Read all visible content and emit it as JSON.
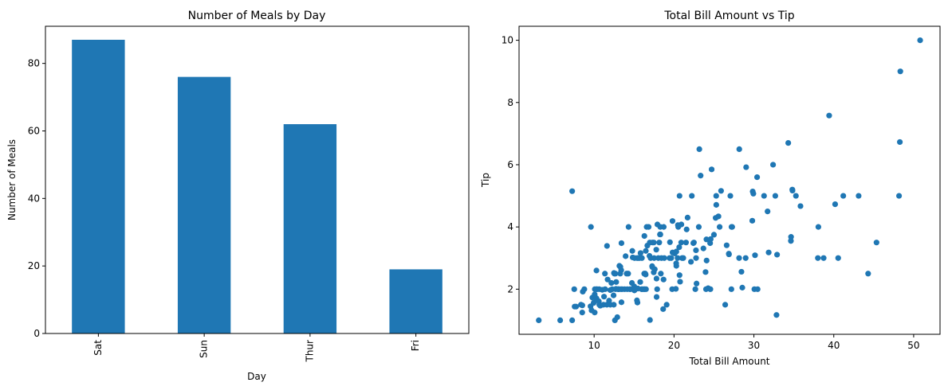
{
  "chart_data": [
    {
      "type": "bar",
      "title": "Number of Meals by Day",
      "xlabel": "Day",
      "ylabel": "Number of Meals",
      "categories": [
        "Sat",
        "Sun",
        "Thur",
        "Fri"
      ],
      "values": [
        87,
        76,
        62,
        19
      ],
      "ylim": [
        0,
        91
      ],
      "yticks": [
        0,
        20,
        40,
        60,
        80
      ],
      "color": "#1f77b4",
      "grid": false,
      "legend": "none"
    },
    {
      "type": "scatter",
      "title": "Total Bill Amount vs Tip",
      "xlabel": "Total Bill Amount",
      "ylabel": "Tip",
      "xlim": [
        0.6,
        53.3
      ],
      "ylim": [
        0.55,
        10.45
      ],
      "xticks": [
        10,
        20,
        30,
        40,
        50
      ],
      "yticks": [
        2,
        4,
        6,
        8,
        10
      ],
      "color": "#1f77b4",
      "grid": false,
      "legend": "none",
      "points": [
        [
          3.07,
          1.0
        ],
        [
          5.75,
          1.0
        ],
        [
          7.25,
          1.0
        ],
        [
          7.25,
          5.15
        ],
        [
          7.51,
          2.0
        ],
        [
          7.56,
          1.44
        ],
        [
          7.74,
          1.44
        ],
        [
          8.35,
          1.5
        ],
        [
          8.51,
          1.25
        ],
        [
          8.52,
          1.48
        ],
        [
          8.58,
          1.92
        ],
        [
          8.77,
          2.0
        ],
        [
          9.55,
          1.45
        ],
        [
          9.6,
          4.0
        ],
        [
          9.68,
          1.32
        ],
        [
          9.78,
          1.73
        ],
        [
          9.94,
          1.56
        ],
        [
          10.07,
          1.83
        ],
        [
          10.07,
          1.25
        ],
        [
          10.09,
          2.0
        ],
        [
          10.27,
          1.71
        ],
        [
          10.29,
          2.6
        ],
        [
          10.33,
          1.67
        ],
        [
          10.33,
          2.0
        ],
        [
          10.34,
          1.66
        ],
        [
          10.34,
          2.0
        ],
        [
          10.59,
          1.61
        ],
        [
          10.63,
          2.0
        ],
        [
          10.65,
          1.5
        ],
        [
          10.77,
          1.47
        ],
        [
          11.02,
          1.98
        ],
        [
          11.17,
          1.5
        ],
        [
          11.24,
          1.76
        ],
        [
          11.35,
          2.5
        ],
        [
          11.38,
          2.0
        ],
        [
          11.59,
          1.5
        ],
        [
          11.61,
          3.39
        ],
        [
          11.69,
          2.31
        ],
        [
          11.87,
          1.63
        ],
        [
          12.02,
          1.97
        ],
        [
          12.03,
          1.5
        ],
        [
          12.16,
          2.2
        ],
        [
          12.26,
          2.0
        ],
        [
          12.43,
          1.8
        ],
        [
          12.46,
          1.5
        ],
        [
          12.48,
          2.52
        ],
        [
          12.54,
          2.5
        ],
        [
          12.6,
          1.0
        ],
        [
          12.66,
          2.5
        ],
        [
          12.69,
          2.0
        ],
        [
          12.74,
          2.01
        ],
        [
          12.76,
          2.23
        ],
        [
          12.9,
          1.1
        ],
        [
          13.0,
          2.0
        ],
        [
          13.03,
          2.0
        ],
        [
          13.13,
          2.0
        ],
        [
          13.16,
          2.75
        ],
        [
          13.27,
          2.5
        ],
        [
          13.28,
          2.72
        ],
        [
          13.37,
          2.0
        ],
        [
          13.39,
          2.61
        ],
        [
          13.42,
          3.48
        ],
        [
          13.42,
          1.58
        ],
        [
          13.51,
          2.0
        ],
        [
          13.81,
          2.0
        ],
        [
          13.94,
          3.06
        ],
        [
          14.07,
          2.5
        ],
        [
          14.15,
          2.0
        ],
        [
          14.26,
          2.5
        ],
        [
          14.31,
          4.0
        ],
        [
          14.48,
          2.0
        ],
        [
          14.52,
          2.0
        ],
        [
          14.73,
          2.2
        ],
        [
          14.78,
          3.23
        ],
        [
          14.83,
          3.02
        ],
        [
          15.01,
          2.09
        ],
        [
          15.04,
          1.96
        ],
        [
          15.06,
          3.0
        ],
        [
          15.36,
          1.64
        ],
        [
          15.38,
          3.0
        ],
        [
          15.42,
          1.57
        ],
        [
          15.48,
          2.02
        ],
        [
          15.53,
          3.0
        ],
        [
          15.69,
          3.0
        ],
        [
          15.77,
          2.23
        ],
        [
          15.81,
          3.16
        ],
        [
          15.95,
          2.0
        ],
        [
          15.98,
          3.0
        ],
        [
          16.0,
          2.0
        ],
        [
          16.21,
          2.0
        ],
        [
          16.27,
          2.5
        ],
        [
          16.29,
          3.71
        ],
        [
          16.31,
          2.0
        ],
        [
          16.4,
          2.5
        ],
        [
          16.45,
          2.47
        ],
        [
          16.47,
          3.23
        ],
        [
          16.49,
          2.0
        ],
        [
          16.58,
          4.0
        ],
        [
          16.66,
          3.4
        ],
        [
          16.82,
          4.0
        ],
        [
          16.93,
          3.07
        ],
        [
          16.97,
          3.5
        ],
        [
          16.99,
          1.01
        ],
        [
          17.07,
          3.0
        ],
        [
          17.26,
          2.74
        ],
        [
          17.29,
          2.71
        ],
        [
          17.31,
          3.5
        ],
        [
          17.46,
          2.54
        ],
        [
          17.47,
          3.5
        ],
        [
          17.51,
          3.0
        ],
        [
          17.59,
          2.64
        ],
        [
          17.78,
          3.27
        ],
        [
          17.81,
          2.34
        ],
        [
          17.82,
          1.75
        ],
        [
          17.89,
          2.0
        ],
        [
          17.92,
          4.08
        ],
        [
          18.04,
          3.0
        ],
        [
          18.15,
          3.5
        ],
        [
          18.24,
          3.76
        ],
        [
          18.28,
          4.0
        ],
        [
          18.29,
          3.76
        ],
        [
          18.35,
          2.5
        ],
        [
          18.43,
          3.0
        ],
        [
          18.64,
          1.36
        ],
        [
          18.69,
          2.31
        ],
        [
          18.71,
          4.0
        ],
        [
          18.78,
          3.0
        ],
        [
          19.08,
          1.5
        ],
        [
          19.44,
          3.0
        ],
        [
          19.49,
          3.51
        ],
        [
          19.65,
          3.0
        ],
        [
          19.77,
          2.0
        ],
        [
          19.81,
          4.19
        ],
        [
          19.82,
          3.18
        ],
        [
          20.08,
          3.15
        ],
        [
          20.23,
          2.01
        ],
        [
          20.27,
          2.83
        ],
        [
          20.29,
          2.75
        ],
        [
          20.29,
          3.21
        ],
        [
          20.45,
          3.0
        ],
        [
          20.49,
          4.06
        ],
        [
          20.53,
          4.0
        ],
        [
          20.65,
          3.35
        ],
        [
          20.69,
          2.45
        ],
        [
          20.69,
          5.0
        ],
        [
          20.76,
          2.24
        ],
        [
          20.9,
          3.5
        ],
        [
          20.92,
          4.08
        ],
        [
          21.01,
          3.0
        ],
        [
          21.16,
          3.0
        ],
        [
          21.5,
          3.5
        ],
        [
          21.58,
          3.92
        ],
        [
          21.7,
          4.3
        ],
        [
          22.12,
          2.88
        ],
        [
          22.23,
          5.0
        ],
        [
          22.42,
          3.48
        ],
        [
          22.49,
          3.5
        ],
        [
          22.67,
          2.0
        ],
        [
          22.75,
          3.25
        ],
        [
          22.76,
          3.0
        ],
        [
          22.82,
          2.18
        ],
        [
          23.1,
          4.0
        ],
        [
          23.17,
          6.5
        ],
        [
          23.33,
          5.65
        ],
        [
          23.68,
          3.31
        ],
        [
          23.95,
          2.55
        ],
        [
          24.01,
          2.0
        ],
        [
          24.06,
          3.6
        ],
        [
          24.08,
          2.92
        ],
        [
          24.27,
          2.03
        ],
        [
          24.52,
          3.48
        ],
        [
          24.55,
          2.0
        ],
        [
          24.59,
          3.61
        ],
        [
          24.71,
          5.85
        ],
        [
          25.0,
          3.75
        ],
        [
          25.21,
          4.29
        ],
        [
          25.28,
          5.0
        ],
        [
          25.29,
          4.71
        ],
        [
          25.56,
          4.34
        ],
        [
          25.71,
          4.0
        ],
        [
          25.89,
          5.16
        ],
        [
          26.41,
          1.5
        ],
        [
          26.59,
          3.41
        ],
        [
          26.86,
          3.14
        ],
        [
          26.88,
          3.12
        ],
        [
          27.05,
          5.0
        ],
        [
          27.18,
          2.0
        ],
        [
          27.2,
          4.0
        ],
        [
          27.28,
          4.0
        ],
        [
          28.15,
          3.0
        ],
        [
          28.17,
          6.5
        ],
        [
          28.44,
          2.56
        ],
        [
          28.55,
          2.05
        ],
        [
          28.97,
          3.0
        ],
        [
          29.03,
          5.92
        ],
        [
          29.8,
          4.2
        ],
        [
          29.85,
          5.14
        ],
        [
          29.93,
          5.07
        ],
        [
          30.06,
          2.0
        ],
        [
          30.14,
          3.09
        ],
        [
          30.4,
          5.6
        ],
        [
          30.46,
          2.0
        ],
        [
          31.27,
          5.0
        ],
        [
          31.71,
          4.5
        ],
        [
          31.85,
          3.18
        ],
        [
          32.4,
          6.0
        ],
        [
          32.68,
          5.0
        ],
        [
          32.83,
          1.17
        ],
        [
          32.9,
          3.11
        ],
        [
          34.3,
          6.7
        ],
        [
          34.63,
          3.55
        ],
        [
          34.65,
          3.68
        ],
        [
          34.81,
          5.2
        ],
        [
          35.26,
          5.0
        ],
        [
          35.83,
          4.67
        ],
        [
          38.01,
          3.0
        ],
        [
          38.07,
          4.0
        ],
        [
          38.73,
          3.0
        ],
        [
          39.42,
          7.58
        ],
        [
          40.17,
          4.73
        ],
        [
          40.55,
          3.0
        ],
        [
          41.19,
          5.0
        ],
        [
          43.11,
          5.0
        ],
        [
          44.3,
          2.5
        ],
        [
          45.35,
          3.5
        ],
        [
          48.17,
          5.0
        ],
        [
          48.27,
          6.73
        ],
        [
          48.33,
          9.0
        ],
        [
          50.81,
          10.0
        ],
        [
          34.83,
          5.17
        ]
      ]
    }
  ]
}
